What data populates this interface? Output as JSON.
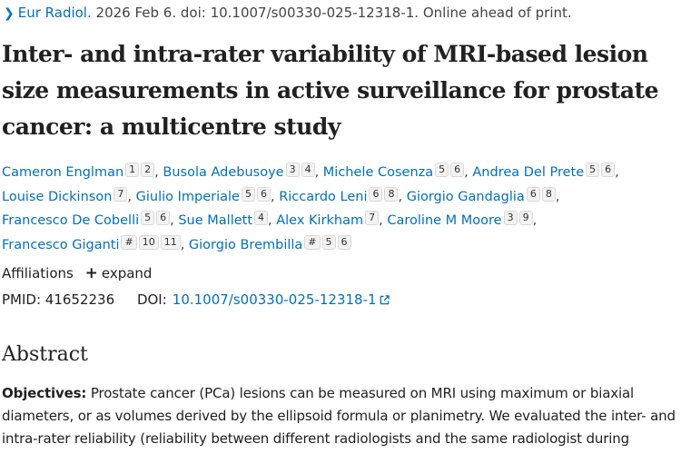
{
  "citation": {
    "journal": "Eur Radiol.",
    "details": "2026 Feb 6. doi: 10.1007/s00330-025-12318-1. Online ahead of print."
  },
  "title": "Inter- and intra-rater variability of MRI-based lesion size measurements in active surveillance for prostate cancer: a multicentre study",
  "authors": [
    {
      "name": "Cameron Englman",
      "affs": [
        "1",
        "2"
      ]
    },
    {
      "name": "Busola Adebusoye",
      "affs": [
        "3",
        "4"
      ]
    },
    {
      "name": "Michele Cosenza",
      "affs": [
        "5",
        "6"
      ]
    },
    {
      "name": "Andrea Del Prete",
      "affs": [
        "5",
        "6"
      ]
    },
    {
      "name": "Louise Dickinson",
      "affs": [
        "7"
      ]
    },
    {
      "name": "Giulio Imperiale",
      "affs": [
        "5",
        "6"
      ]
    },
    {
      "name": "Riccardo Leni",
      "affs": [
        "6",
        "8"
      ]
    },
    {
      "name": "Giorgio Gandaglia",
      "affs": [
        "6",
        "8"
      ]
    },
    {
      "name": "Francesco De Cobelli",
      "affs": [
        "5",
        "6"
      ]
    },
    {
      "name": "Sue Mallett",
      "affs": [
        "4"
      ]
    },
    {
      "name": "Alex Kirkham",
      "affs": [
        "7"
      ]
    },
    {
      "name": "Caroline M Moore",
      "affs": [
        "3",
        "9"
      ]
    },
    {
      "name": "Francesco Giganti",
      "affs": [
        "#",
        "10",
        "11"
      ]
    },
    {
      "name": "Giorgio Brembilla",
      "affs": [
        "#",
        "5",
        "6"
      ]
    }
  ],
  "affiliations": {
    "label": "Affiliations",
    "expand_label": "expand"
  },
  "ids": {
    "pmid_label": "PMID:",
    "pmid": "41652236",
    "doi_label": "DOI:",
    "doi": "10.1007/s00330-025-12318-1"
  },
  "abstract": {
    "heading": "Abstract",
    "objectives_label": "Objectives:",
    "objectives_text": "Prostate cancer (PCa) lesions can be measured on MRI using maximum or biaxial diameters, or as volumes derived by the ellipsoid formula or planimetry. We evaluated the inter- and intra-rater reliability (reliability between different radiologists and the same radiologist during"
  },
  "colors": {
    "link": "#0071bc",
    "text": "#212121"
  },
  "icons": {
    "breadcrumb": "chevron-right-icon",
    "expand": "plus-icon",
    "external": "external-link-icon"
  }
}
